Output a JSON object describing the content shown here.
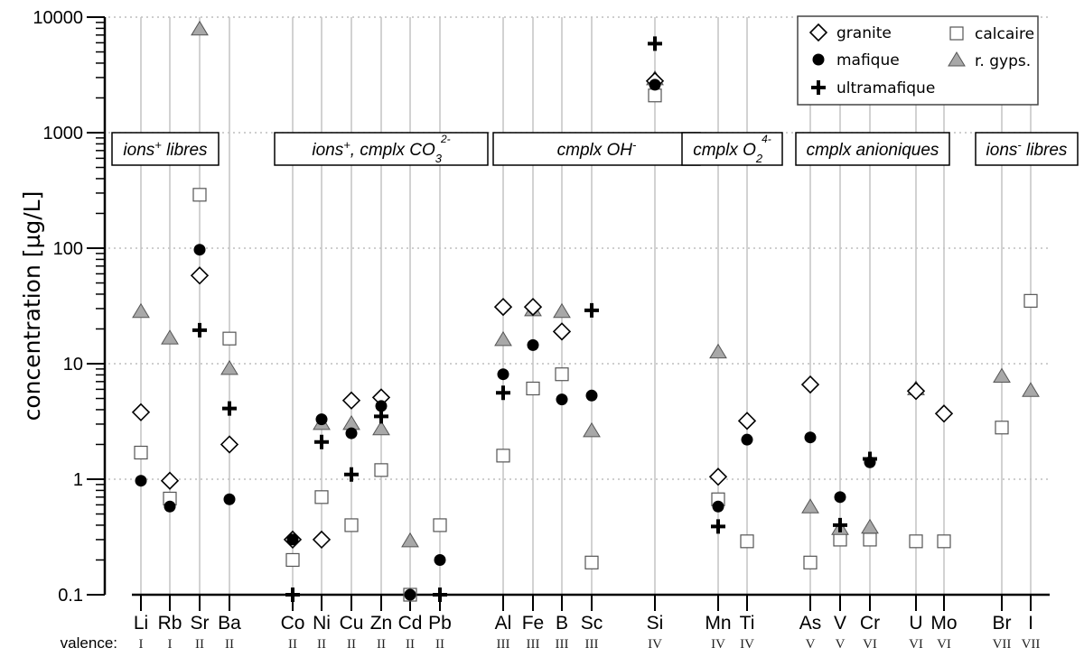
{
  "chart_data": {
    "type": "scatter",
    "title": "",
    "ylabel": "concentration  [µg/L]",
    "xlabel": "",
    "yscale": "log",
    "ylim": [
      0.1,
      10000
    ],
    "yticks": [
      {
        "value": 10000,
        "label": "10000"
      },
      {
        "value": 1000,
        "label": "1000"
      },
      {
        "value": 100,
        "label": "100"
      },
      {
        "value": 10,
        "label": "10"
      },
      {
        "value": 1,
        "label": "1"
      },
      {
        "value": 0.1,
        "label": "0.1"
      }
    ],
    "grid": "horizontal dotted at decades",
    "valence_title": "valence:",
    "categories": [
      "Li",
      "Rb",
      "Sr",
      "Ba",
      "Co",
      "Ni",
      "Cu",
      "Zn",
      "Cd",
      "Pb",
      "Al",
      "Fe",
      "B",
      "Sc",
      "Si",
      "Mn",
      "Ti",
      "As",
      "V",
      "Cr",
      "U",
      "Mo",
      "Br",
      "I"
    ],
    "valences": [
      "I",
      "I",
      "II",
      "II",
      "II",
      "II",
      "II",
      "II",
      "II",
      "II",
      "III",
      "III",
      "III",
      "III",
      "IV",
      "IV",
      "IV",
      "V",
      "V",
      "VI",
      "VI",
      "VI",
      "VII",
      "VII"
    ],
    "groups": [
      {
        "label_main": "ions",
        "label_sup": "+",
        "label_rest": " libres",
        "label_sub": "",
        "label_sup2": "",
        "members": [
          "Li",
          "Rb",
          "Sr",
          "Ba"
        ]
      },
      {
        "label_main": "ions",
        "label_sup": "+",
        "label_rest": ", cmplx CO",
        "label_sub": "3",
        "label_sup2": "2-",
        "members": [
          "Co",
          "Ni",
          "Cu",
          "Zn",
          "Cd",
          "Pb"
        ]
      },
      {
        "label_main": "cmplx OH",
        "label_sup": "-",
        "label_rest": "",
        "label_sub": "",
        "label_sup2": "",
        "members": [
          "Al",
          "Fe",
          "B",
          "Sc"
        ]
      },
      {
        "label_main": "cmplx O",
        "label_sup": "",
        "label_rest": "",
        "label_sub": "2",
        "label_sup2": "4-",
        "members": [
          "Mn",
          "Ti"
        ]
      },
      {
        "label_main": "cmplx anioniques",
        "label_sup": "",
        "label_rest": "",
        "label_sub": "",
        "label_sup2": "",
        "members": [
          "As",
          "V",
          "Cr",
          "U",
          "Mo"
        ]
      },
      {
        "label_main": "ions",
        "label_sup": "-",
        "label_rest": " libres",
        "label_sub": "",
        "label_sup2": "",
        "members": [
          "Br",
          "I"
        ]
      }
    ],
    "legend": {
      "position": "top-right",
      "entries": [
        {
          "series": "granite",
          "label": "granite"
        },
        {
          "series": "calcaire",
          "label": "calcaire"
        },
        {
          "series": "mafique",
          "label": "mafique"
        },
        {
          "series": "r_gyps",
          "label": "r. gyps."
        },
        {
          "series": "ultramafique",
          "label": "ultramafique"
        }
      ]
    },
    "series": [
      {
        "key": "calcaire",
        "name": "calcaire",
        "marker": "square",
        "color": "#ffffff",
        "edge": "#555555",
        "values": [
          1.7,
          0.68,
          290,
          16.5,
          0.2,
          0.7,
          0.4,
          1.2,
          0.1,
          0.4,
          1.6,
          6.1,
          8.1,
          0.19,
          2100,
          0.67,
          0.29,
          0.19,
          0.3,
          0.3,
          0.29,
          0.29,
          2.8,
          35
        ]
      },
      {
        "key": "r_gyps",
        "name": "r. gyps.",
        "marker": "triangle",
        "color": "#a8a8a8",
        "edge": "#555555",
        "values": [
          28,
          16.5,
          7800,
          9.0,
          null,
          3.0,
          3.0,
          2.7,
          0.29,
          null,
          16,
          29,
          28,
          2.6,
          2900,
          12.5,
          null,
          0.57,
          0.37,
          0.38,
          6.0,
          null,
          7.7,
          5.8
        ]
      },
      {
        "key": "granite",
        "name": "granite",
        "marker": "diamond",
        "color": "#ffffff",
        "edge": "#000000",
        "values": [
          3.8,
          0.97,
          58,
          2.0,
          0.3,
          0.3,
          4.8,
          5.1,
          null,
          null,
          31,
          31,
          19,
          null,
          2800,
          1.05,
          3.2,
          6.6,
          null,
          null,
          5.8,
          3.7,
          null,
          null
        ]
      },
      {
        "key": "mafique",
        "name": "mafique",
        "marker": "circle",
        "color": "#000000",
        "edge": "#000000",
        "values": [
          0.97,
          0.58,
          97,
          0.67,
          0.3,
          3.3,
          2.5,
          4.3,
          0.1,
          0.2,
          8.1,
          14.5,
          4.9,
          5.3,
          2600,
          0.58,
          2.2,
          2.3,
          0.7,
          1.4,
          null,
          null,
          null,
          null
        ]
      },
      {
        "key": "ultramafique",
        "name": "ultramafique",
        "marker": "plus",
        "color": "#000000",
        "edge": "#000000",
        "values": [
          null,
          null,
          19.5,
          4.1,
          0.1,
          2.1,
          1.1,
          3.5,
          null,
          0.1,
          5.6,
          null,
          null,
          29,
          5900,
          0.39,
          null,
          null,
          0.4,
          1.5,
          null,
          null,
          null,
          null
        ]
      }
    ]
  }
}
